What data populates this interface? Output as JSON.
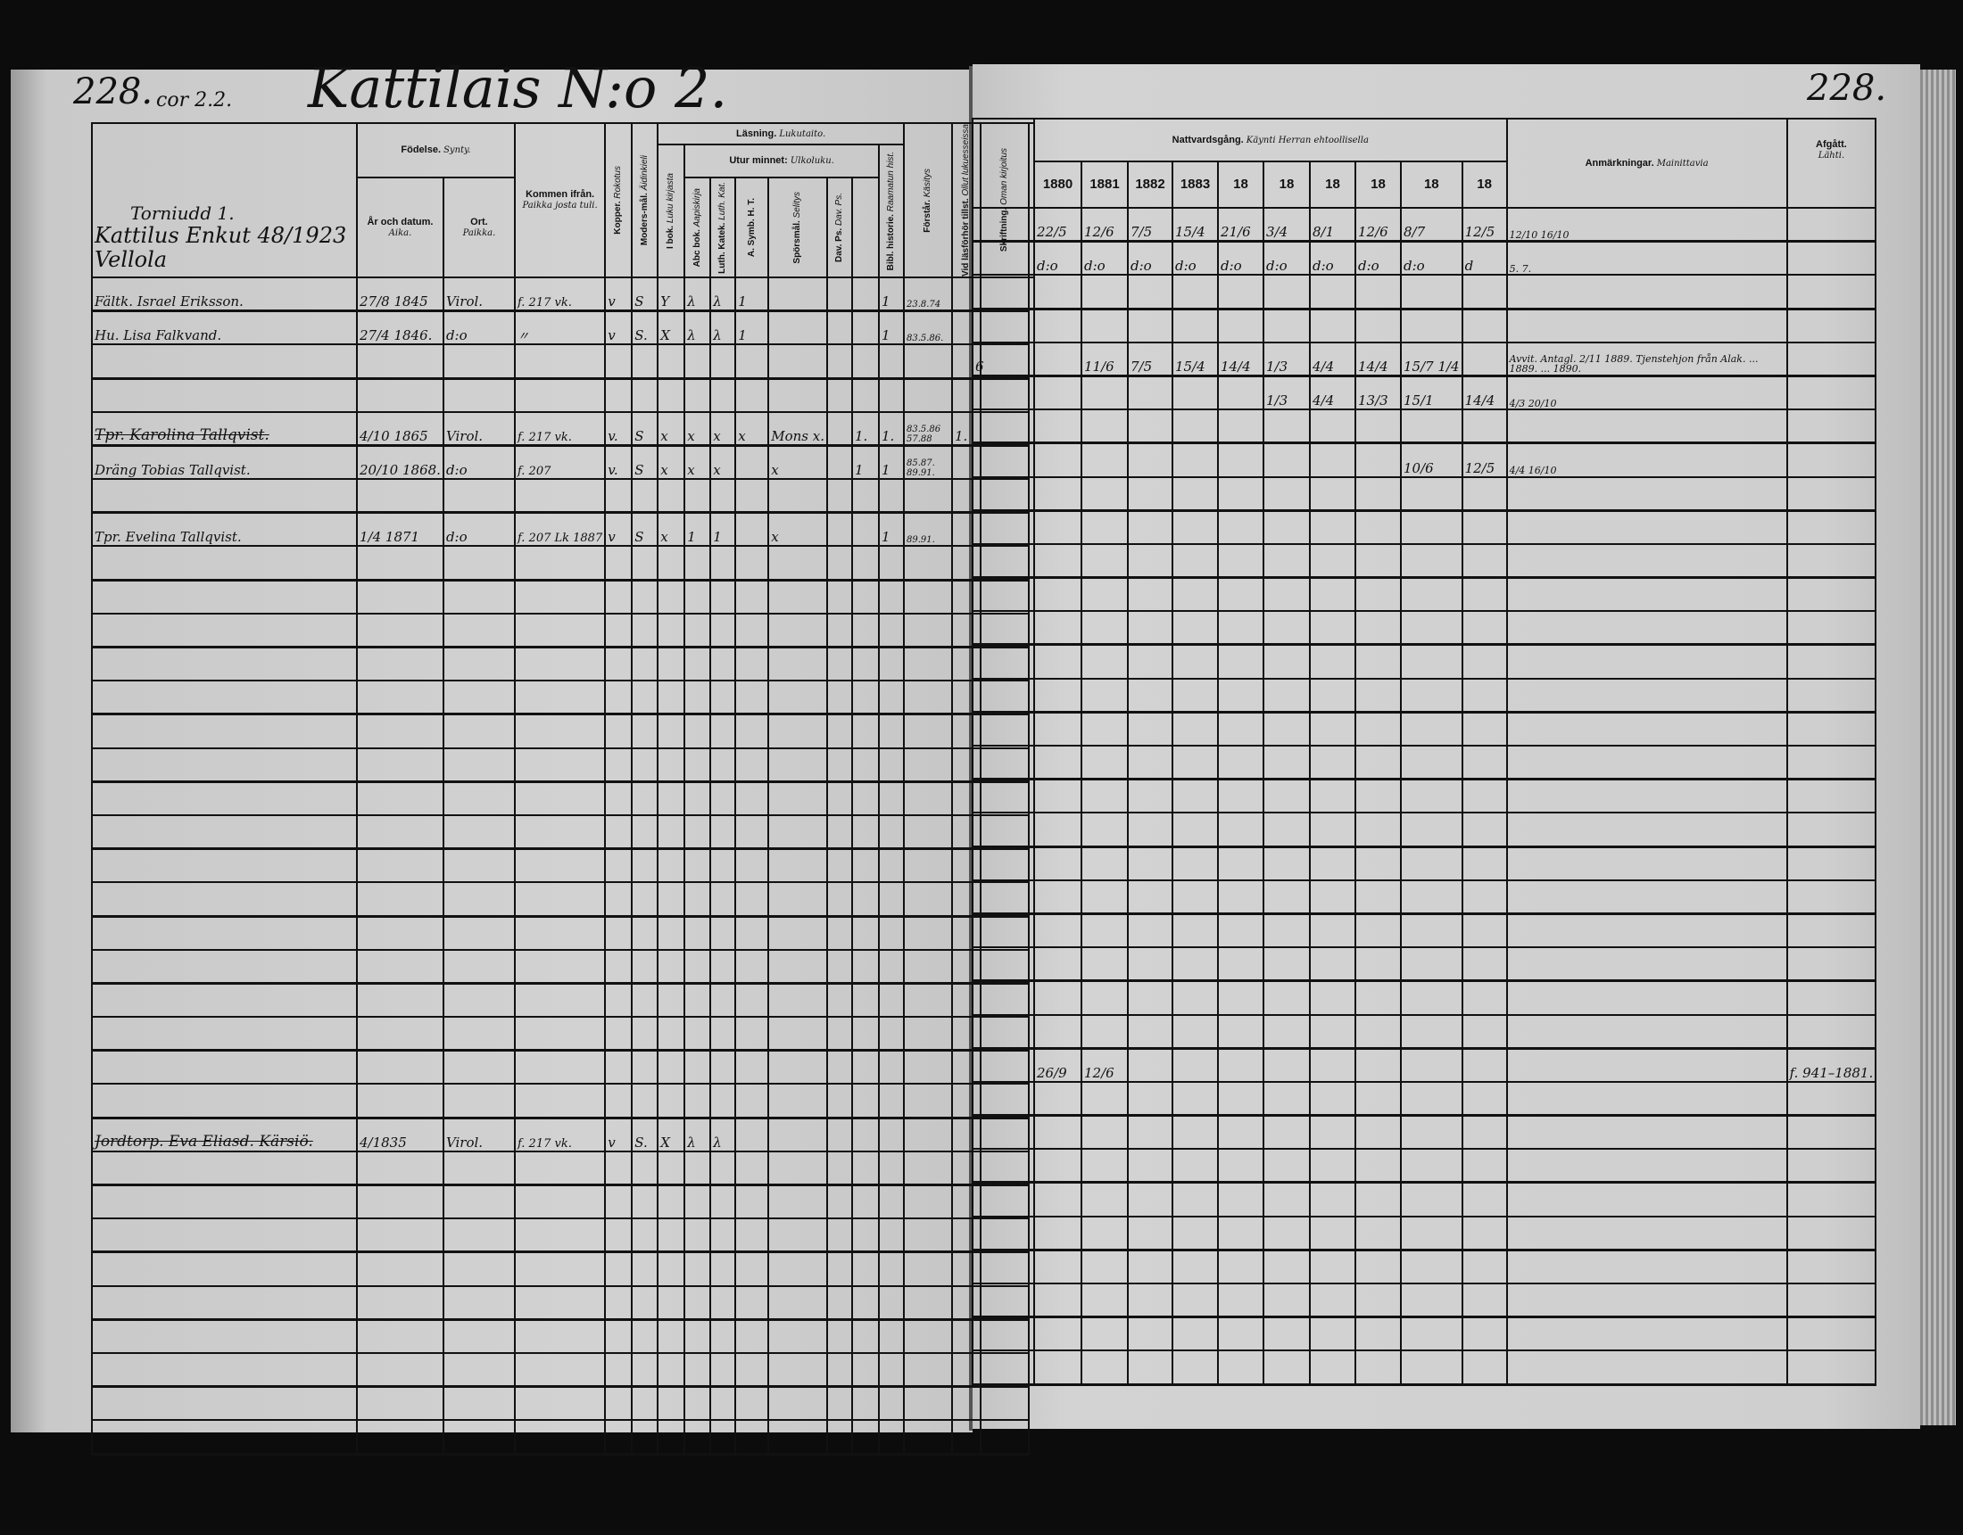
{
  "page_left": {
    "page_number": "228.",
    "note": "cor 2.2.",
    "title": "Kattilais N:o 2.",
    "header_lines": [
      "Torniudd 1.",
      "Kattilus Enkut 48/1923 Vellola"
    ]
  },
  "page_right": {
    "page_number": "228."
  },
  "left_headers": {
    "birth": "Födelse.",
    "birth_fi": "Synty.",
    "birth_date": "År och datum.",
    "birth_date_fi": "Aika.",
    "birth_place": "Ort.",
    "birth_place_fi": "Paikka.",
    "came_from": "Kommen ifrån.",
    "came_from_fi": "Paikka josta tuli.",
    "vaccination": "Kopper.",
    "vaccination_fi": "Rokotus",
    "mother_tongue": "Moders-mål.",
    "mother_tongue_fi": "Äidinkieli",
    "reading": "Läsning.",
    "reading_fi": "Lukutaito.",
    "book": "I bok.",
    "book_fi": "Luku kirjasta",
    "memory": "Utur minnet:",
    "memory_fi": "Ulkoluku.",
    "abc": "Abc bok.",
    "abc_fi": "Aapiskirja",
    "catechism": "Luth. Katek.",
    "catechism_fi": "Luth. Kat.",
    "symb": "A. Symb. H. T.",
    "questions": "Spörsmål.",
    "questions_fi": "Selitys",
    "psalms": "Dav. Ps.",
    "psalms_fi": "Dav. Ps.",
    "bible_history": "Bibl. historie.",
    "bible_history_fi": "Raamatun hist.",
    "understanding": "Förstår.",
    "understanding_fi": "Käsitys",
    "exams": "Vid läsförhör tillst.",
    "exams_fi": "Ollut lukuesseissa",
    "writing": "Skriftning.",
    "writing_fi": "Oman kirjoitus"
  },
  "right_headers": {
    "communion": "Nattvardsgång.",
    "communion_fi": "Käynti Herran ehtoollisella",
    "years": [
      "1880",
      "1881",
      "1882",
      "1883",
      "18",
      "18",
      "18",
      "18",
      "18",
      "18"
    ],
    "remarks": "Anmärkningar.",
    "remarks_fi": "Mainittavia",
    "departed": "Afgått.",
    "departed_fi": "Lähti."
  },
  "left_entries": [
    {
      "line": 1,
      "struck": false,
      "cells": [
        "Fältk. Israel Eriksson.",
        "27/8 1845",
        "Virol.",
        "f. 217 vk.",
        "v",
        "S",
        "Y",
        "λ",
        "λ",
        "1",
        "",
        "",
        "",
        "1",
        "23.8.74",
        "",
        ""
      ]
    },
    {
      "line": 2,
      "struck": false,
      "cells": [
        "Hu. Lisa Falkvand.",
        "27/4 1846.",
        "d:o",
        "〃",
        "v",
        "S.",
        "X",
        "λ",
        "λ",
        "1",
        "",
        "",
        "",
        "1",
        "83.5.86.",
        "",
        ""
      ]
    },
    {
      "line": 5,
      "struck": true,
      "cells": [
        "Tpr. Karolina Tallqvist.",
        "4/10 1865",
        "Virol.",
        "f. 217 vk.",
        "v.",
        "S",
        "x",
        "x",
        "x",
        "x",
        "Mons x.",
        "",
        "1.",
        "1.",
        "83.5.86 57.88",
        "1.",
        ""
      ]
    },
    {
      "line": 6,
      "struck": false,
      "cells": [
        "Dräng Tobias Tallqvist.",
        "20/10 1868.",
        "d:o",
        "f. 207",
        "v.",
        "S",
        "x",
        "x",
        "x",
        "",
        "x",
        "",
        "1",
        "1",
        "85.87. 89.91.",
        "",
        ""
      ]
    },
    {
      "line": 8,
      "struck": false,
      "cells": [
        "Tpr. Evelina Tallqvist.",
        "1/4 1871",
        "d:o",
        "f. 207 Lk 1887",
        "v",
        "S",
        "x",
        "1",
        "1",
        "",
        "x",
        "",
        "",
        "1",
        "89.91.",
        "",
        ""
      ]
    },
    {
      "line": 26,
      "struck": true,
      "cells": [
        "Jordtorp. Eva Eliasd. Kärsiö.",
        "4/1835",
        "Virol.",
        "f. 217 vk.",
        "v",
        "S.",
        "X",
        "λ",
        "λ",
        "",
        "",
        "",
        "",
        "",
        "",
        "",
        ""
      ]
    }
  ],
  "right_entries": [
    {
      "line": 1,
      "cells": [
        "",
        "22/5",
        "12/6",
        "7/5",
        "15/4",
        "21/6",
        "3/4",
        "8/1",
        "12/6",
        "8/7",
        "12/5",
        "12/10 16/10",
        ""
      ]
    },
    {
      "line": 2,
      "cells": [
        "",
        "d:o",
        "d:o",
        "d:o",
        "d:o",
        "d:o",
        "d:o",
        "d:o",
        "d:o",
        "d:o",
        "d",
        "5. 7.",
        ""
      ]
    },
    {
      "line": 5,
      "cells": [
        "6",
        "",
        "11/6",
        "7/5",
        "15/4",
        "14/4",
        "1/3",
        "4/4",
        "14/4",
        "15/7 1/4",
        "",
        "Avvit. Antagl. 2/11 1889. Tjenstehjon från Alak. ... 1889. ... 1890.",
        ""
      ]
    },
    {
      "line": 6,
      "cells": [
        "",
        "",
        "",
        "",
        "",
        "",
        "1/3",
        "4/4",
        "13/3",
        "15/1",
        "14/4",
        "4/3 20/10",
        ""
      ]
    },
    {
      "line": 8,
      "cells": [
        "",
        "",
        "",
        "",
        "",
        "",
        "",
        "",
        "",
        "10/6",
        "12/5",
        "4/4 16/10",
        ""
      ]
    },
    {
      "line": 26,
      "cells": [
        "",
        "26/9",
        "12/6",
        "",
        "",
        "",
        "",
        "",
        "",
        "",
        "",
        "",
        "f. 941–1881."
      ]
    }
  ],
  "colors": {
    "paper": "#cecece",
    "ink": "#111111",
    "background": "#0c0c0c"
  }
}
